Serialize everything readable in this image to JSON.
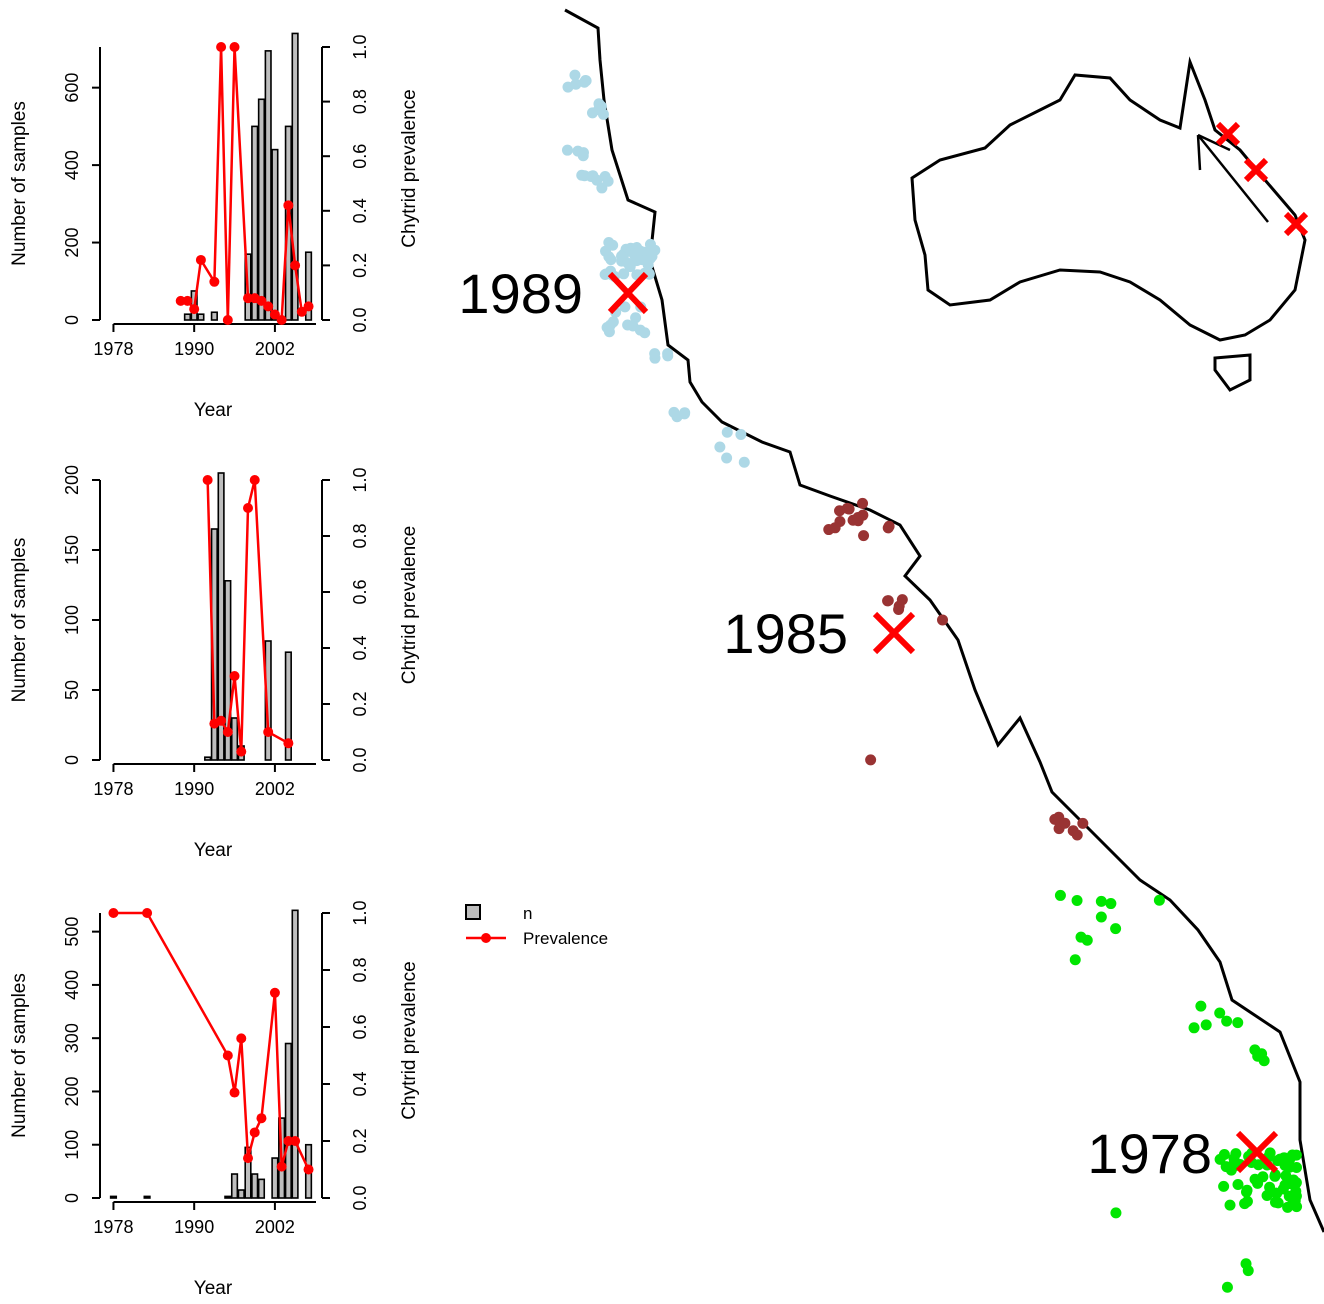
{
  "chart_data": [
    {
      "type": "combo",
      "x_label": "Year",
      "y_label": "Number of samples",
      "y2_label": "Chytrid prevalence",
      "xlim": [
        1976,
        2009
      ],
      "xticks": [
        1978,
        1990,
        2002
      ],
      "ylim": [
        0,
        705
      ],
      "yticks": [
        0,
        200,
        400,
        600
      ],
      "y2lim": [
        0,
        1
      ],
      "y2ticks": [
        {
          "value": 0,
          "label": "0.0"
        },
        0.2,
        0.4,
        0.6,
        0.8,
        {
          "value": 1,
          "label": "1.0"
        }
      ],
      "series": [
        {
          "name": "n",
          "type": "bar",
          "color": "#bebebe",
          "x": [
            1989,
            1990,
            1991,
            1993,
            1998,
            1999,
            2000,
            2001,
            2002,
            2004,
            2005,
            2007
          ],
          "values": [
            15,
            75,
            15,
            20,
            170,
            500,
            570,
            695,
            440,
            500,
            740,
            175
          ]
        },
        {
          "name": "Prevalence",
          "type": "line",
          "color": "#ff0000",
          "axis": "y2",
          "x": [
            1988,
            1989,
            1990,
            1991,
            1993,
            1994,
            1995,
            1996,
            1998,
            1999,
            2000,
            2001,
            2002,
            2003,
            2004,
            2005,
            2006,
            2007
          ],
          "values": [
            0.07,
            0.07,
            0.04,
            0.22,
            0.14,
            1.0,
            0.0,
            1.0,
            0.08,
            0.08,
            0.07,
            0.05,
            0.02,
            0.0,
            0.42,
            0.2,
            0.03,
            0.05
          ]
        }
      ]
    },
    {
      "type": "combo",
      "x_label": "Year",
      "y_label": "Number of samples",
      "y2_label": "Chytrid prevalence",
      "xlim": [
        1976,
        2009
      ],
      "xticks": [
        1978,
        1990,
        2002
      ],
      "ylim": [
        0,
        200
      ],
      "yticks": [
        0,
        50,
        100,
        150,
        200
      ],
      "y2lim": [
        0,
        1
      ],
      "y2ticks": [
        {
          "value": 0,
          "label": "0.0"
        },
        0.2,
        0.4,
        0.6,
        0.8,
        {
          "value": 1,
          "label": "1.0"
        }
      ],
      "series": [
        {
          "name": "n",
          "type": "bar",
          "color": "#bebebe",
          "x": [
            1992,
            1993,
            1994,
            1995,
            1996,
            1997,
            2001,
            2004
          ],
          "values": [
            2,
            165,
            205,
            128,
            30,
            10,
            85,
            77
          ]
        },
        {
          "name": "Prevalence",
          "type": "line",
          "color": "#ff0000",
          "axis": "y2",
          "x": [
            1992,
            1993,
            1994,
            1995,
            1996,
            1997,
            1998,
            1999,
            2001,
            2004
          ],
          "values": [
            1.0,
            0.13,
            0.14,
            0.1,
            0.3,
            0.03,
            0.9,
            1.0,
            0.1,
            0.06
          ]
        }
      ]
    },
    {
      "type": "combo",
      "x_label": "Year",
      "y_label": "Number of samples",
      "y2_label": "Chytrid prevalence",
      "xlim": [
        1976,
        2009
      ],
      "xticks": [
        1978,
        1990,
        2002
      ],
      "ylim": [
        0,
        535
      ],
      "yticks": [
        0,
        100,
        200,
        300,
        400,
        500
      ],
      "y2lim": [
        0,
        1
      ],
      "y2ticks": [
        {
          "value": 0,
          "label": "0.0"
        },
        0.2,
        0.4,
        0.6,
        0.8,
        {
          "value": 1,
          "label": "1.0"
        }
      ],
      "series": [
        {
          "name": "n",
          "type": "bar",
          "color": "#bebebe",
          "x": [
            1978,
            1983,
            1995,
            1996,
            1997,
            1998,
            1999,
            2000,
            2002,
            2003,
            2004,
            2005,
            2007
          ],
          "values": [
            3,
            3,
            3,
            45,
            15,
            95,
            45,
            35,
            75,
            150,
            290,
            540,
            100
          ]
        },
        {
          "name": "Prevalence",
          "type": "line",
          "color": "#ff0000",
          "axis": "y2",
          "x": [
            1978,
            1983,
            1995,
            1996,
            1997,
            1998,
            1999,
            2000,
            2002,
            2003,
            2004,
            2005,
            2007
          ],
          "values": [
            1.0,
            1.0,
            0.5,
            0.37,
            0.56,
            0.14,
            0.23,
            0.28,
            0.72,
            0.11,
            0.2,
            0.2,
            0.1
          ]
        }
      ]
    }
  ],
  "map": {
    "labels": [
      "1989",
      "1985",
      "1978"
    ]
  }
}
